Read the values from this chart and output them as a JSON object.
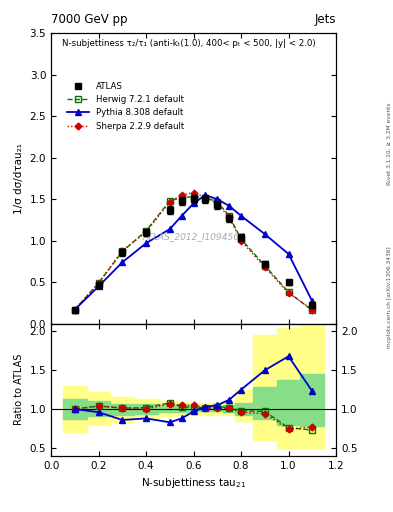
{
  "title_top": "7000 GeV pp",
  "title_right": "Jets",
  "subtitle": "N-subjettiness τ₂/τ₁ (anti-kₜ(1.0), 400< pₜ < 500, |y| < 2.0)",
  "ylabel_main": "1/σ dσ/dτau₂₁",
  "ylabel_ratio": "Ratio to ATLAS",
  "watermark": "ATLAS_2012_I1094564",
  "right_label1": "Rivet 3.1.10, ≥ 3.2M events",
  "right_label2": "mcplots.cern.ch [arXiv:1306.3436]",
  "x": [
    0.1,
    0.2,
    0.3,
    0.4,
    0.5,
    0.55,
    0.6,
    0.65,
    0.7,
    0.75,
    0.8,
    0.9,
    1.0,
    1.1
  ],
  "atlas_y": [
    0.17,
    0.47,
    0.86,
    1.1,
    1.37,
    1.48,
    1.5,
    1.5,
    1.43,
    1.27,
    1.04,
    0.72,
    0.5,
    0.22
  ],
  "atlas_yerr": [
    0.02,
    0.03,
    0.04,
    0.04,
    0.05,
    0.05,
    0.05,
    0.05,
    0.05,
    0.04,
    0.04,
    0.04,
    0.03,
    0.02
  ],
  "herwig_y": [
    0.17,
    0.49,
    0.87,
    1.12,
    1.48,
    1.52,
    1.53,
    1.52,
    1.47,
    1.3,
    1.02,
    0.7,
    0.38,
    0.16
  ],
  "pythia_y": [
    0.17,
    0.45,
    0.74,
    0.97,
    1.14,
    1.3,
    1.45,
    1.55,
    1.5,
    1.42,
    1.3,
    1.08,
    0.84,
    0.27
  ],
  "sherpa_y": [
    0.17,
    0.49,
    0.88,
    1.1,
    1.47,
    1.55,
    1.58,
    1.52,
    1.45,
    1.28,
    1.0,
    0.68,
    0.37,
    0.17
  ],
  "herwig_ratio": [
    1.0,
    1.04,
    1.01,
    1.02,
    1.08,
    1.03,
    1.02,
    1.01,
    1.03,
    1.02,
    0.98,
    0.97,
    0.76,
    0.73
  ],
  "pythia_ratio": [
    1.0,
    0.96,
    0.86,
    0.88,
    0.83,
    0.88,
    0.97,
    1.03,
    1.05,
    1.12,
    1.25,
    1.5,
    1.68,
    1.23
  ],
  "sherpa_ratio": [
    1.0,
    1.04,
    1.02,
    1.0,
    1.07,
    1.05,
    1.05,
    1.01,
    1.01,
    1.01,
    0.96,
    0.94,
    0.74,
    0.77
  ],
  "band_x_edges": [
    0.05,
    0.15,
    0.25,
    0.35,
    0.45,
    0.525,
    0.575,
    0.625,
    0.675,
    0.725,
    0.775,
    0.85,
    0.95,
    1.05,
    1.15
  ],
  "band_yellow_lo": [
    0.7,
    0.8,
    0.84,
    0.87,
    0.91,
    0.92,
    0.93,
    0.93,
    0.93,
    0.92,
    0.85,
    0.6,
    0.5,
    0.5
  ],
  "band_yellow_hi": [
    1.3,
    1.22,
    1.16,
    1.13,
    1.1,
    1.09,
    1.08,
    1.08,
    1.08,
    1.1,
    1.25,
    1.95,
    2.05,
    2.1
  ],
  "band_green_lo": [
    0.87,
    0.91,
    0.93,
    0.94,
    0.96,
    0.96,
    0.97,
    0.97,
    0.97,
    0.96,
    0.93,
    0.87,
    0.8,
    0.78
  ],
  "band_green_hi": [
    1.13,
    1.1,
    1.07,
    1.06,
    1.05,
    1.05,
    1.04,
    1.04,
    1.04,
    1.05,
    1.08,
    1.28,
    1.38,
    1.45
  ],
  "atlas_color": "#000000",
  "herwig_color": "#007700",
  "pythia_color": "#0000cc",
  "sherpa_color": "#cc0000",
  "yellow_band_color": "#ffff88",
  "green_band_color": "#88dd88",
  "main_ylim": [
    0,
    3.5
  ],
  "ratio_ylim": [
    0.4,
    2.1
  ],
  "xlim": [
    0,
    1.2
  ],
  "main_yticks": [
    0.0,
    0.5,
    1.0,
    1.5,
    2.0,
    2.5,
    3.0,
    3.5
  ],
  "ratio_yticks": [
    0.5,
    1.0,
    1.5,
    2.0
  ]
}
